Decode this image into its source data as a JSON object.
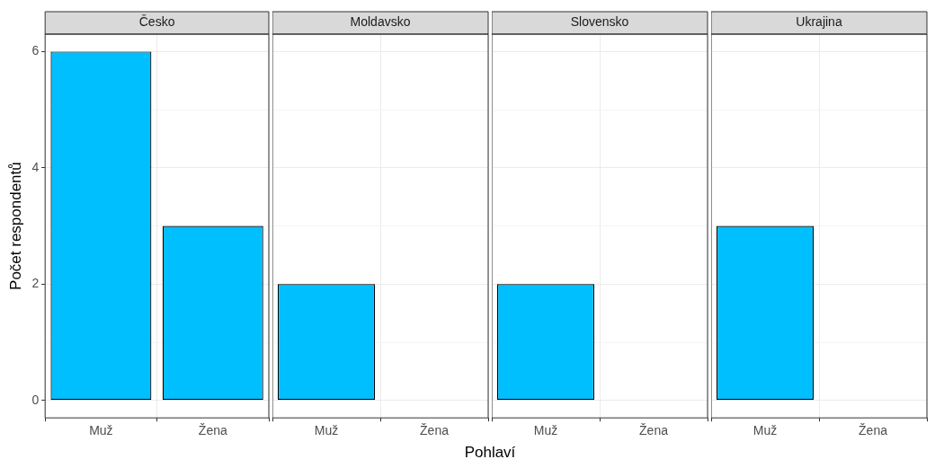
{
  "chart_data": [
    {
      "type": "bar",
      "title": "Česko",
      "ylabel": "Počet respondentů",
      "categories": [
        "Muž",
        "Žena"
      ],
      "values": [
        6,
        3
      ],
      "color": "#00bfff",
      "ylim": [
        -0.3,
        6.3
      ],
      "yticks": [
        0,
        {
          "value": 1,
          "label": null
        },
        2,
        {
          "value": 3,
          "label": null
        },
        4,
        {
          "value": 5,
          "label": null
        },
        6
      ],
      "grid": true
    },
    {
      "type": "bar",
      "title": "Moldavsko",
      "xlabel": "Pohlaví",
      "categories": [
        "Muž",
        "Žena"
      ],
      "values": [
        2,
        null
      ],
      "color": "#00bfff",
      "ylim": [
        -0.3,
        6.3
      ],
      "yticks": [
        0,
        {
          "value": 1,
          "label": null
        },
        2,
        {
          "value": 3,
          "label": null
        },
        4,
        {
          "value": 5,
          "label": null
        },
        6
      ],
      "grid": true,
      "tick_labels": "x"
    },
    {
      "type": "bar",
      "title": "Slovensko",
      "categories": [
        "Muž",
        "Žena"
      ],
      "values": [
        2,
        null
      ],
      "color": "#00bfff",
      "ylim": [
        -0.3,
        6.3
      ],
      "yticks": [
        0,
        {
          "value": 1,
          "label": null
        },
        2,
        {
          "value": 3,
          "label": null
        },
        4,
        {
          "value": 5,
          "label": null
        },
        6
      ],
      "grid": true,
      "tick_labels": "x"
    },
    {
      "type": "bar",
      "title": "Ukrajina",
      "categories": [
        "Muž",
        "Žena"
      ],
      "values": [
        3,
        null
      ],
      "color": "#00bfff",
      "ylim": [
        -0.3,
        6.3
      ],
      "yticks": [
        0,
        {
          "value": 1,
          "label": null
        },
        2,
        {
          "value": 3,
          "label": null
        },
        4,
        {
          "value": 5,
          "label": null
        },
        6
      ],
      "grid": true,
      "tick_labels": "x"
    }
  ]
}
